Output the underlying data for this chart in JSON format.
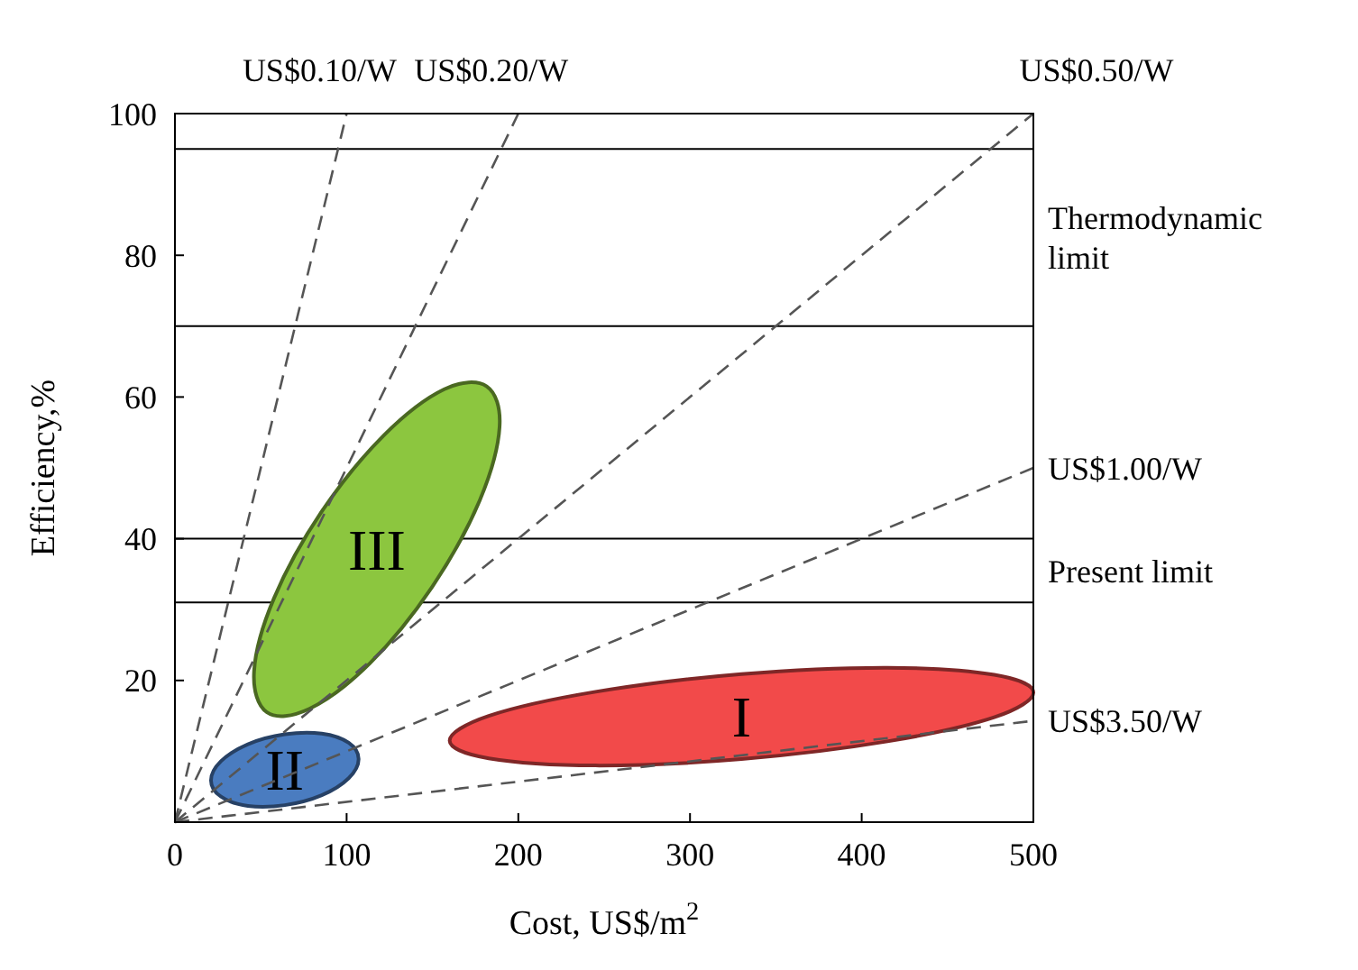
{
  "chart_data": {
    "type": "line",
    "xlabel": "Cost, US$/m$^{2}$",
    "ylabel": "Efficiency,%",
    "xlim": [
      0,
      500
    ],
    "ylim": [
      0,
      100
    ],
    "xticks": [
      0,
      100,
      200,
      300,
      400,
      500
    ],
    "yticks": [
      20,
      40,
      60,
      80,
      100
    ],
    "line_style": "dashed",
    "series": [
      {
        "name": "III",
        "type": "area",
        "color": "#8cc63f",
        "x": [
          181.6,
          189.1,
          177.5,
          149.8,
          113.5,
          78.3,
          53.6,
          46.1,
          57.7,
          85.4,
          121.7,
          156.9
        ],
        "values": [
          61.5,
          55.8,
          45.4,
          33.2,
          22.4,
          16.0,
          15.5,
          21.3,
          31.6,
          43.8,
          54.6,
          61.1
        ]
      },
      {
        "name": "II",
        "type": "area",
        "color": "#4a7cc0",
        "x": [
          107,
          101.2,
          85.5,
          64,
          42.5,
          26.8,
          21,
          26.8,
          42.5,
          64,
          85.5,
          101.2
        ],
        "values": [
          8.9,
          11.2,
          12.5,
          12.4,
          11.0,
          8.6,
          5.9,
          3.6,
          2.3,
          2.4,
          3.8,
          6.2
        ]
      },
      {
        "name": "I",
        "type": "area",
        "color": "#f24a4a",
        "x": [
          500,
          477.2,
          415,
          330,
          245,
          182.8,
          160,
          182.8,
          245,
          330,
          415,
          477.2
        ],
        "values": [
          18.3,
          20.8,
          21.8,
          20.9,
          18.4,
          15.0,
          11.5,
          9.0,
          8.0,
          8.9,
          11.4,
          14.8
        ]
      },
      {
        "name": "US$0.10/W",
        "color": "#555555",
        "x": [
          0,
          100
        ],
        "values": [
          0,
          100
        ]
      },
      {
        "name": "US$0.20/W",
        "color": "#555555",
        "x": [
          0,
          200
        ],
        "values": [
          0,
          100
        ]
      },
      {
        "name": "US$0.50/W",
        "color": "#555555",
        "x": [
          0,
          500
        ],
        "values": [
          0,
          100
        ]
      },
      {
        "name": "US$1.00/W",
        "color": "#555555",
        "x": [
          0,
          500
        ],
        "values": [
          0,
          50
        ]
      },
      {
        "name": "US$3.50/W",
        "color": "#555555",
        "x": [
          0,
          500
        ],
        "values": [
          0,
          14.3
        ]
      }
    ],
    "ref_lines": [
      {
        "axis": "y",
        "value": 95
      },
      {
        "axis": "y",
        "value": 70,
        "label": "Thermodynamic limit"
      },
      {
        "axis": "y",
        "value": 40
      },
      {
        "axis": "y",
        "value": 31,
        "label": "Present limit"
      }
    ]
  }
}
